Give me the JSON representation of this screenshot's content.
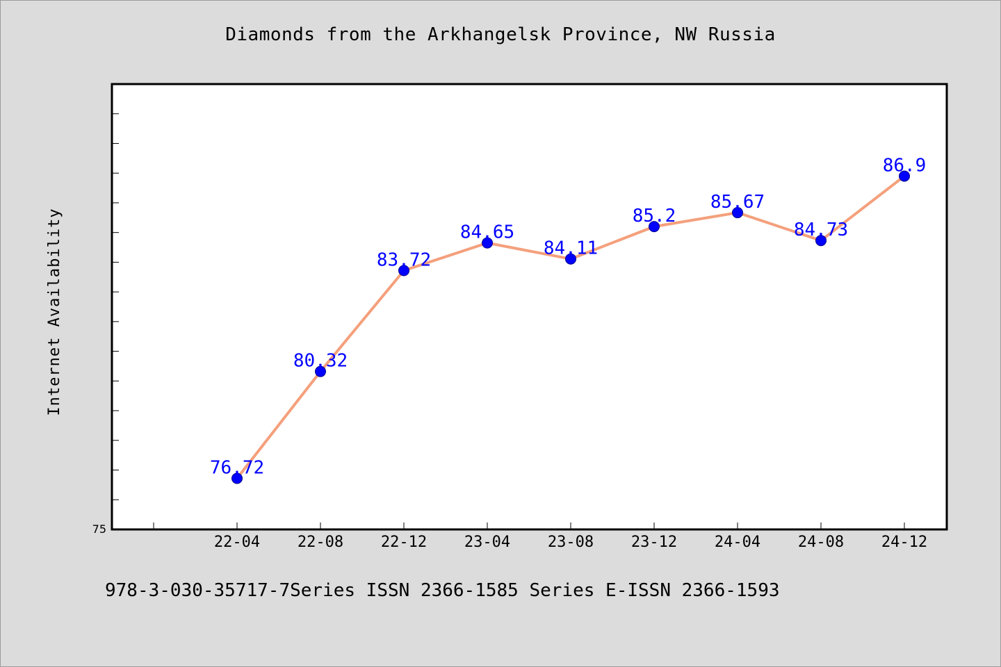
{
  "chart_data": {
    "type": "line",
    "title": "Diamonds from the Arkhangelsk Province, NW Russia",
    "xlabel": "",
    "ylabel": "Internet Availability",
    "categories": [
      "22-04",
      "22-08",
      "22-12",
      "23-04",
      "23-08",
      "23-12",
      "24-04",
      "24-08",
      "24-12"
    ],
    "values": [
      76.72,
      80.32,
      83.72,
      84.65,
      84.11,
      85.2,
      85.67,
      84.73,
      86.9
    ],
    "data_labels": [
      "76.72",
      "80.32",
      "83.72",
      "84.65",
      "84.11",
      "85.2",
      "85.67",
      "84.73",
      "86.9"
    ],
    "y_tick_labels": [
      "75"
    ],
    "ylim": [
      75,
      90
    ],
    "grid": false,
    "legend": "none",
    "colors": {
      "line": "#f4a07c",
      "marker": "#0000ff",
      "data_label": "#0000ff",
      "plot_background": "#ffffff",
      "page_background": "#dcdcdc"
    }
  },
  "footer": {
    "text": "978-3-030-35717-7Series ISSN 2366-1585 Series E-ISSN 2366-1593"
  }
}
